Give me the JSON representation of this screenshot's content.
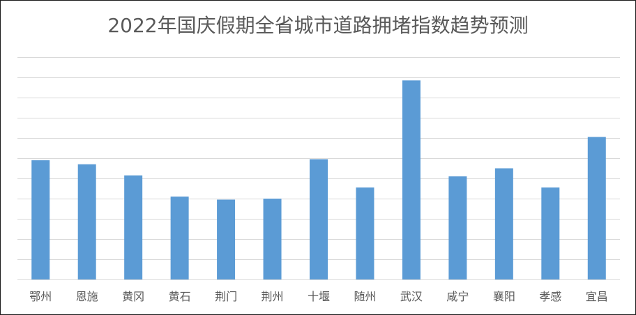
{
  "chart_data": {
    "type": "bar",
    "title": "2022年国庆假期全省城市道路拥堵指数趋势预测",
    "categories": [
      "鄂州",
      "恩施",
      "黄冈",
      "黄石",
      "荆门",
      "荆州",
      "十堰",
      "随州",
      "武汉",
      "咸宁",
      "襄阳",
      "孝感",
      "宜昌"
    ],
    "values": [
      5.9,
      5.7,
      5.15,
      4.1,
      3.95,
      4.0,
      5.95,
      4.55,
      9.85,
      5.1,
      5.5,
      4.55,
      7.05
    ],
    "ylim": [
      0,
      11
    ],
    "grid": true,
    "bar_color": "#5b9bd5",
    "grid_color": "#d9d9d9"
  }
}
